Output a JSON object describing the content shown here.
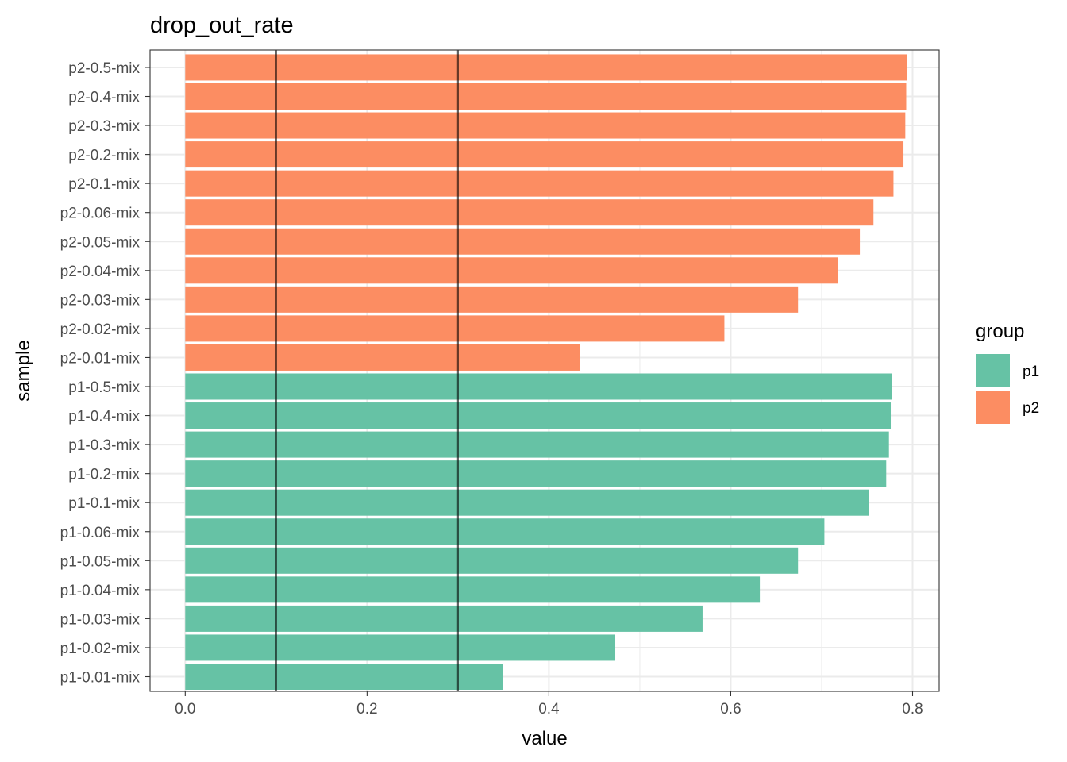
{
  "chart_data": {
    "type": "bar",
    "orientation": "horizontal",
    "title": "drop_out_rate",
    "xlabel": "value",
    "ylabel": "sample",
    "xlim": [
      -0.04,
      0.83
    ],
    "xticks": [
      0.0,
      0.2,
      0.4,
      0.6,
      0.8
    ],
    "xtick_labels": [
      "0.0",
      "0.2",
      "0.4",
      "0.6",
      "0.8"
    ],
    "grid": true,
    "reference_lines": [
      0.1,
      0.3
    ],
    "legend": {
      "title": "group",
      "placement": "right",
      "entries": [
        {
          "name": "p1",
          "color": "#66C2A5"
        },
        {
          "name": "p2",
          "color": "#FC8D62"
        }
      ]
    },
    "categories": [
      "p1-0.01-mix",
      "p1-0.02-mix",
      "p1-0.03-mix",
      "p1-0.04-mix",
      "p1-0.05-mix",
      "p1-0.06-mix",
      "p1-0.1-mix",
      "p1-0.2-mix",
      "p1-0.3-mix",
      "p1-0.4-mix",
      "p1-0.5-mix",
      "p2-0.01-mix",
      "p2-0.02-mix",
      "p2-0.03-mix",
      "p2-0.04-mix",
      "p2-0.05-mix",
      "p2-0.06-mix",
      "p2-0.1-mix",
      "p2-0.2-mix",
      "p2-0.3-mix",
      "p2-0.4-mix",
      "p2-0.5-mix"
    ],
    "values": [
      0.349,
      0.473,
      0.569,
      0.632,
      0.674,
      0.703,
      0.752,
      0.771,
      0.774,
      0.776,
      0.777,
      0.434,
      0.593,
      0.674,
      0.718,
      0.742,
      0.757,
      0.779,
      0.79,
      0.792,
      0.793,
      0.794
    ],
    "groups": [
      "p1",
      "p1",
      "p1",
      "p1",
      "p1",
      "p1",
      "p1",
      "p1",
      "p1",
      "p1",
      "p1",
      "p2",
      "p2",
      "p2",
      "p2",
      "p2",
      "p2",
      "p2",
      "p2",
      "p2",
      "p2",
      "p2"
    ]
  }
}
